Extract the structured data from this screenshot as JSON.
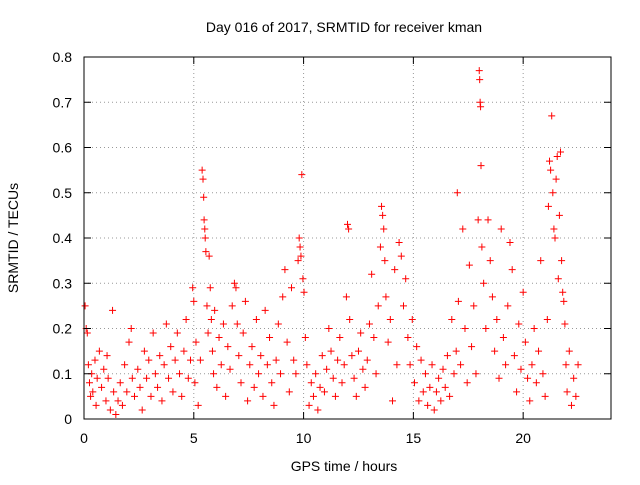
{
  "chart_data": {
    "type": "scatter",
    "title": "Day 016 of 2017, SRMTID for receiver kman",
    "xlabel": "GPS time / hours",
    "ylabel": "SRMTID / TECUs",
    "xlim": [
      0,
      24
    ],
    "ylim": [
      0,
      0.8
    ],
    "xticks": [
      0,
      5,
      10,
      15,
      20
    ],
    "xtick_labels": [
      "0",
      "5",
      "10",
      "15",
      "20"
    ],
    "yticks": [
      0,
      0.1,
      0.2,
      0.3,
      0.4,
      0.5,
      0.6,
      0.7,
      0.8
    ],
    "ytick_labels": [
      "0",
      "0.1",
      "0.2",
      "0.3",
      "0.4",
      "0.5",
      "0.6",
      "0.7",
      "0.8"
    ],
    "grid": true,
    "marker": "+",
    "colors": {
      "series": "#ff0000",
      "grid": "#999999",
      "axis": "#000000"
    },
    "series": [
      {
        "name": "SRMTID",
        "points": [
          [
            0.05,
            0.25
          ],
          [
            0.1,
            0.2
          ],
          [
            0.15,
            0.19
          ],
          [
            0.2,
            0.12
          ],
          [
            0.25,
            0.08
          ],
          [
            0.3,
            0.05
          ],
          [
            0.35,
            0.1
          ],
          [
            0.4,
            0.06
          ],
          [
            0.5,
            0.13
          ],
          [
            0.55,
            0.03
          ],
          [
            0.6,
            0.09
          ],
          [
            0.7,
            0.15
          ],
          [
            0.8,
            0.07
          ],
          [
            0.9,
            0.11
          ],
          [
            1.0,
            0.04
          ],
          [
            1.05,
            0.14
          ],
          [
            1.1,
            0.09
          ],
          [
            1.2,
            0.02
          ],
          [
            1.3,
            0.24
          ],
          [
            1.35,
            0.06
          ],
          [
            1.45,
            0.01
          ],
          [
            1.55,
            0.04
          ],
          [
            1.65,
            0.08
          ],
          [
            1.75,
            0.03
          ],
          [
            1.85,
            0.12
          ],
          [
            1.95,
            0.06
          ],
          [
            2.05,
            0.17
          ],
          [
            2.15,
            0.2
          ],
          [
            2.2,
            0.09
          ],
          [
            2.3,
            0.05
          ],
          [
            2.45,
            0.11
          ],
          [
            2.55,
            0.07
          ],
          [
            2.65,
            0.02
          ],
          [
            2.75,
            0.15
          ],
          [
            2.85,
            0.09
          ],
          [
            2.95,
            0.13
          ],
          [
            3.05,
            0.05
          ],
          [
            3.15,
            0.19
          ],
          [
            3.25,
            0.1
          ],
          [
            3.35,
            0.07
          ],
          [
            3.45,
            0.14
          ],
          [
            3.55,
            0.04
          ],
          [
            3.65,
            0.12
          ],
          [
            3.75,
            0.21
          ],
          [
            3.85,
            0.09
          ],
          [
            3.95,
            0.16
          ],
          [
            4.05,
            0.06
          ],
          [
            4.15,
            0.13
          ],
          [
            4.25,
            0.19
          ],
          [
            4.35,
            0.1
          ],
          [
            4.45,
            0.05
          ],
          [
            4.55,
            0.15
          ],
          [
            4.65,
            0.22
          ],
          [
            4.75,
            0.09
          ],
          [
            4.85,
            0.13
          ],
          [
            4.95,
            0.29
          ],
          [
            5.0,
            0.26
          ],
          [
            5.05,
            0.08
          ],
          [
            5.1,
            0.17
          ],
          [
            5.2,
            0.03
          ],
          [
            5.3,
            0.13
          ],
          [
            5.38,
            0.55
          ],
          [
            5.42,
            0.53
          ],
          [
            5.45,
            0.49
          ],
          [
            5.47,
            0.44
          ],
          [
            5.5,
            0.42
          ],
          [
            5.52,
            0.4
          ],
          [
            5.55,
            0.37
          ],
          [
            5.6,
            0.25
          ],
          [
            5.65,
            0.19
          ],
          [
            5.7,
            0.36
          ],
          [
            5.75,
            0.29
          ],
          [
            5.8,
            0.22
          ],
          [
            5.85,
            0.15
          ],
          [
            5.9,
            0.1
          ],
          [
            5.95,
            0.24
          ],
          [
            6.05,
            0.07
          ],
          [
            6.15,
            0.18
          ],
          [
            6.25,
            0.12
          ],
          [
            6.35,
            0.21
          ],
          [
            6.45,
            0.05
          ],
          [
            6.55,
            0.16
          ],
          [
            6.65,
            0.11
          ],
          [
            6.75,
            0.25
          ],
          [
            6.85,
            0.3
          ],
          [
            6.92,
            0.29
          ],
          [
            6.98,
            0.21
          ],
          [
            7.05,
            0.14
          ],
          [
            7.15,
            0.08
          ],
          [
            7.25,
            0.19
          ],
          [
            7.35,
            0.26
          ],
          [
            7.45,
            0.04
          ],
          [
            7.55,
            0.12
          ],
          [
            7.65,
            0.16
          ],
          [
            7.75,
            0.07
          ],
          [
            7.85,
            0.22
          ],
          [
            7.95,
            0.1
          ],
          [
            8.05,
            0.14
          ],
          [
            8.15,
            0.05
          ],
          [
            8.25,
            0.24
          ],
          [
            8.35,
            0.12
          ],
          [
            8.45,
            0.18
          ],
          [
            8.55,
            0.08
          ],
          [
            8.65,
            0.03
          ],
          [
            8.75,
            0.13
          ],
          [
            8.85,
            0.21
          ],
          [
            8.95,
            0.1
          ],
          [
            9.05,
            0.27
          ],
          [
            9.15,
            0.33
          ],
          [
            9.25,
            0.17
          ],
          [
            9.35,
            0.06
          ],
          [
            9.45,
            0.29
          ],
          [
            9.55,
            0.13
          ],
          [
            9.65,
            0.1
          ],
          [
            9.75,
            0.35
          ],
          [
            9.8,
            0.4
          ],
          [
            9.84,
            0.38
          ],
          [
            9.88,
            0.36
          ],
          [
            9.92,
            0.54
          ],
          [
            9.97,
            0.31
          ],
          [
            10.02,
            0.28
          ],
          [
            10.08,
            0.18
          ],
          [
            10.15,
            0.12
          ],
          [
            10.25,
            0.03
          ],
          [
            10.35,
            0.08
          ],
          [
            10.45,
            0.05
          ],
          [
            10.55,
            0.1
          ],
          [
            10.65,
            0.02
          ],
          [
            10.75,
            0.07
          ],
          [
            10.85,
            0.14
          ],
          [
            10.95,
            0.06
          ],
          [
            11.05,
            0.11
          ],
          [
            11.15,
            0.2
          ],
          [
            11.25,
            0.15
          ],
          [
            11.35,
            0.09
          ],
          [
            11.45,
            0.05
          ],
          [
            11.55,
            0.13
          ],
          [
            11.65,
            0.18
          ],
          [
            11.75,
            0.08
          ],
          [
            11.85,
            0.12
          ],
          [
            11.95,
            0.27
          ],
          [
            12.0,
            0.43
          ],
          [
            12.05,
            0.42
          ],
          [
            12.1,
            0.22
          ],
          [
            12.2,
            0.14
          ],
          [
            12.3,
            0.09
          ],
          [
            12.4,
            0.05
          ],
          [
            12.5,
            0.15
          ],
          [
            12.6,
            0.19
          ],
          [
            12.7,
            0.11
          ],
          [
            12.8,
            0.07
          ],
          [
            12.9,
            0.13
          ],
          [
            13.0,
            0.21
          ],
          [
            13.1,
            0.32
          ],
          [
            13.2,
            0.18
          ],
          [
            13.3,
            0.1
          ],
          [
            13.4,
            0.25
          ],
          [
            13.5,
            0.38
          ],
          [
            13.55,
            0.47
          ],
          [
            13.6,
            0.45
          ],
          [
            13.65,
            0.42
          ],
          [
            13.7,
            0.35
          ],
          [
            13.75,
            0.27
          ],
          [
            13.85,
            0.17
          ],
          [
            13.95,
            0.22
          ],
          [
            14.05,
            0.04
          ],
          [
            14.15,
            0.33
          ],
          [
            14.25,
            0.12
          ],
          [
            14.35,
            0.39
          ],
          [
            14.45,
            0.36
          ],
          [
            14.55,
            0.25
          ],
          [
            14.65,
            0.31
          ],
          [
            14.75,
            0.18
          ],
          [
            14.85,
            0.12
          ],
          [
            14.95,
            0.22
          ],
          [
            15.05,
            0.08
          ],
          [
            15.15,
            0.16
          ],
          [
            15.25,
            0.04
          ],
          [
            15.35,
            0.13
          ],
          [
            15.45,
            0.06
          ],
          [
            15.55,
            0.1
          ],
          [
            15.65,
            0.03
          ],
          [
            15.75,
            0.07
          ],
          [
            15.85,
            0.12
          ],
          [
            15.95,
            0.02
          ],
          [
            16.05,
            0.06
          ],
          [
            16.15,
            0.09
          ],
          [
            16.25,
            0.04
          ],
          [
            16.35,
            0.11
          ],
          [
            16.45,
            0.07
          ],
          [
            16.55,
            0.14
          ],
          [
            16.65,
            0.05
          ],
          [
            16.75,
            0.22
          ],
          [
            16.85,
            0.1
          ],
          [
            16.95,
            0.15
          ],
          [
            17.0,
            0.5
          ],
          [
            17.05,
            0.26
          ],
          [
            17.15,
            0.12
          ],
          [
            17.25,
            0.42
          ],
          [
            17.35,
            0.2
          ],
          [
            17.45,
            0.08
          ],
          [
            17.55,
            0.34
          ],
          [
            17.65,
            0.16
          ],
          [
            17.75,
            0.25
          ],
          [
            17.85,
            0.1
          ],
          [
            17.95,
            0.44
          ],
          [
            18.0,
            0.77
          ],
          [
            18.02,
            0.75
          ],
          [
            18.04,
            0.7
          ],
          [
            18.06,
            0.69
          ],
          [
            18.08,
            0.56
          ],
          [
            18.12,
            0.38
          ],
          [
            18.2,
            0.3
          ],
          [
            18.3,
            0.2
          ],
          [
            18.4,
            0.44
          ],
          [
            18.5,
            0.35
          ],
          [
            18.6,
            0.27
          ],
          [
            18.7,
            0.15
          ],
          [
            18.8,
            0.22
          ],
          [
            18.9,
            0.09
          ],
          [
            19.0,
            0.42
          ],
          [
            19.1,
            0.18
          ],
          [
            19.2,
            0.12
          ],
          [
            19.3,
            0.25
          ],
          [
            19.4,
            0.39
          ],
          [
            19.5,
            0.33
          ],
          [
            19.6,
            0.14
          ],
          [
            19.7,
            0.06
          ],
          [
            19.8,
            0.21
          ],
          [
            19.9,
            0.11
          ],
          [
            20.0,
            0.28
          ],
          [
            20.1,
            0.17
          ],
          [
            20.2,
            0.09
          ],
          [
            20.3,
            0.04
          ],
          [
            20.4,
            0.12
          ],
          [
            20.5,
            0.2
          ],
          [
            20.6,
            0.08
          ],
          [
            20.7,
            0.15
          ],
          [
            20.8,
            0.35
          ],
          [
            20.9,
            0.1
          ],
          [
            21.0,
            0.05
          ],
          [
            21.1,
            0.22
          ],
          [
            21.15,
            0.47
          ],
          [
            21.2,
            0.57
          ],
          [
            21.25,
            0.55
          ],
          [
            21.3,
            0.67
          ],
          [
            21.35,
            0.5
          ],
          [
            21.4,
            0.42
          ],
          [
            21.45,
            0.4
          ],
          [
            21.5,
            0.53
          ],
          [
            21.55,
            0.58
          ],
          [
            21.6,
            0.31
          ],
          [
            21.65,
            0.45
          ],
          [
            21.7,
            0.59
          ],
          [
            21.75,
            0.35
          ],
          [
            21.8,
            0.28
          ],
          [
            21.85,
            0.26
          ],
          [
            21.9,
            0.21
          ],
          [
            21.95,
            0.12
          ],
          [
            22.0,
            0.06
          ],
          [
            22.1,
            0.15
          ],
          [
            22.2,
            0.03
          ],
          [
            22.3,
            0.09
          ],
          [
            22.4,
            0.05
          ],
          [
            22.5,
            0.12
          ]
        ]
      }
    ]
  }
}
